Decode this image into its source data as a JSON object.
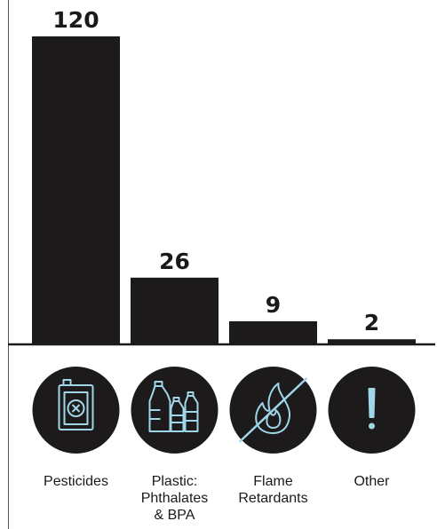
{
  "chart_data": {
    "type": "bar",
    "categories": [
      "Pesticides",
      "Plastic: Phthalates & BPA",
      "Flame Retardants",
      "Other"
    ],
    "category_label_lines": [
      [
        "Pesticides"
      ],
      [
        "Plastic:",
        "Phthalates",
        "& BPA"
      ],
      [
        "Flame",
        "Retardants"
      ],
      [
        "Other"
      ]
    ],
    "values": [
      120,
      26,
      9,
      2
    ],
    "data_labels": [
      "120",
      "26",
      "9",
      "2"
    ],
    "icons": [
      "pesticide-can-icon",
      "plastic-bottles-icon",
      "no-fire-icon",
      "exclamation-icon"
    ],
    "ylim": [
      0,
      120
    ],
    "grid": false,
    "legend": "none",
    "title": "",
    "xlabel": "",
    "ylabel": ""
  },
  "colors": {
    "bar": "#1d1a1b",
    "icon_circle": "#1d1a1b",
    "icon_stroke": "#9fd6e8",
    "text": "#1a1a1a"
  }
}
